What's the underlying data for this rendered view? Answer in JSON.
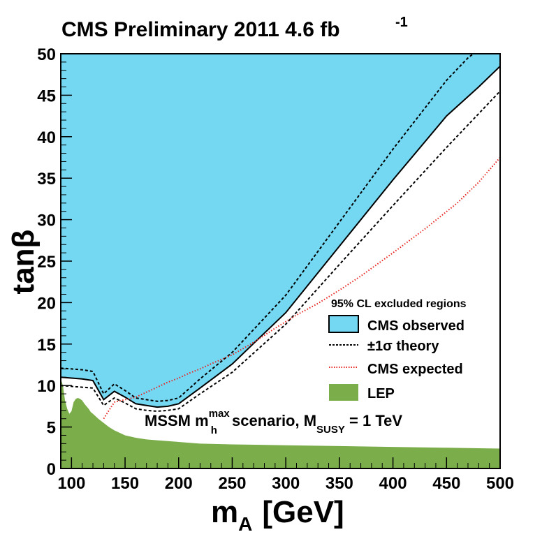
{
  "chart_data": {
    "type": "area",
    "title_main": "CMS Preliminary 2011 4.6 fb",
    "title_sup": "-1",
    "xlabel_main": "m",
    "xlabel_sub": "A",
    "xlabel_unit": "[GeV]",
    "ylabel": "tanβ",
    "xlim": [
      90,
      500
    ],
    "ylim": [
      0,
      50
    ],
    "xticks": [
      100,
      150,
      200,
      250,
      300,
      350,
      400,
      450,
      500
    ],
    "yticks": [
      0,
      5,
      10,
      15,
      20,
      25,
      30,
      35,
      40,
      45,
      50
    ],
    "xtick_labels": [
      "100",
      "150",
      "200",
      "250",
      "300",
      "350",
      "400",
      "450",
      "500"
    ],
    "ytick_labels": [
      "0",
      "5",
      "10",
      "15",
      "20",
      "25",
      "30",
      "35",
      "40",
      "45",
      "50"
    ],
    "annotation": {
      "prefix": "MSSM m",
      "h_sub": "h",
      "h_sup": "max",
      "mid": " scenario, M",
      "susy_sub": "SUSY",
      "suffix": " = 1 TeV"
    },
    "legend": {
      "title": "95% CL excluded regions",
      "entries": [
        "CMS observed",
        "±1σ theory",
        "CMS expected",
        "LEP"
      ],
      "placement": "right"
    },
    "series": [
      {
        "name": "CMS observed",
        "style": "filled-area-above-curve",
        "color": "#74D8F2",
        "x": [
          90,
          100,
          110,
          120,
          130,
          140,
          150,
          160,
          170,
          180,
          190,
          200,
          220,
          250,
          300,
          350,
          400,
          450,
          480,
          500
        ],
        "y": [
          11.0,
          10.9,
          10.8,
          10.6,
          8.3,
          9.3,
          8.6,
          7.8,
          7.6,
          7.4,
          7.5,
          7.8,
          9.7,
          12.6,
          18.8,
          26.8,
          34.8,
          42.5,
          46.0,
          48.5
        ]
      },
      {
        "name": "±1σ theory upper",
        "style": "dashed",
        "color": "#000000",
        "x": [
          90,
          100,
          110,
          120,
          130,
          140,
          150,
          160,
          170,
          180,
          190,
          200,
          220,
          250,
          300,
          350,
          400,
          450,
          470,
          485
        ],
        "y": [
          12.1,
          12.0,
          11.9,
          11.7,
          9.0,
          10.2,
          9.4,
          8.5,
          8.3,
          8.1,
          8.2,
          8.5,
          10.8,
          14.0,
          20.9,
          29.7,
          38.5,
          46.8,
          49.5,
          51.0
        ]
      },
      {
        "name": "±1σ theory lower",
        "style": "dashed",
        "color": "#000000",
        "x": [
          90,
          100,
          110,
          120,
          130,
          140,
          150,
          160,
          170,
          180,
          190,
          200,
          220,
          250,
          300,
          350,
          400,
          450,
          500
        ],
        "y": [
          10.0,
          9.9,
          9.8,
          9.7,
          7.6,
          8.5,
          7.9,
          7.2,
          7.0,
          6.9,
          7.0,
          7.2,
          9.0,
          11.6,
          17.4,
          24.6,
          31.7,
          38.7,
          45.5
        ]
      },
      {
        "name": "CMS expected",
        "style": "dotted",
        "color": "#E8231F",
        "x": [
          130,
          135,
          140,
          150,
          160,
          170,
          180,
          190,
          200,
          210,
          220,
          230,
          250,
          270,
          290,
          310,
          330,
          350,
          370,
          400,
          430,
          460,
          480,
          500
        ],
        "y": [
          6.0,
          7.0,
          8.0,
          8.3,
          8.6,
          9.2,
          9.8,
          10.4,
          10.9,
          11.5,
          12.0,
          12.6,
          13.7,
          15.2,
          16.9,
          18.5,
          19.9,
          21.5,
          23.2,
          26.0,
          28.9,
          32.0,
          34.5,
          37.5
        ]
      },
      {
        "name": "LEP",
        "style": "filled-area-below-curve",
        "color": "#7BAE4B",
        "x": [
          90,
          92,
          94,
          96,
          98,
          100,
          102,
          104,
          106,
          108,
          110,
          112,
          114,
          116,
          118,
          120,
          125,
          130,
          135,
          140,
          150,
          160,
          170,
          180,
          200,
          220,
          250,
          300,
          350,
          400,
          450,
          500
        ],
        "y": [
          10.8,
          10.0,
          8.2,
          7.2,
          6.6,
          6.9,
          8.0,
          8.4,
          8.5,
          8.4,
          8.2,
          7.8,
          7.5,
          7.2,
          6.8,
          6.6,
          6.0,
          5.5,
          5.0,
          4.6,
          4.0,
          3.7,
          3.5,
          3.4,
          3.2,
          3.0,
          2.9,
          2.8,
          2.7,
          2.6,
          2.5,
          2.4
        ]
      }
    ]
  }
}
